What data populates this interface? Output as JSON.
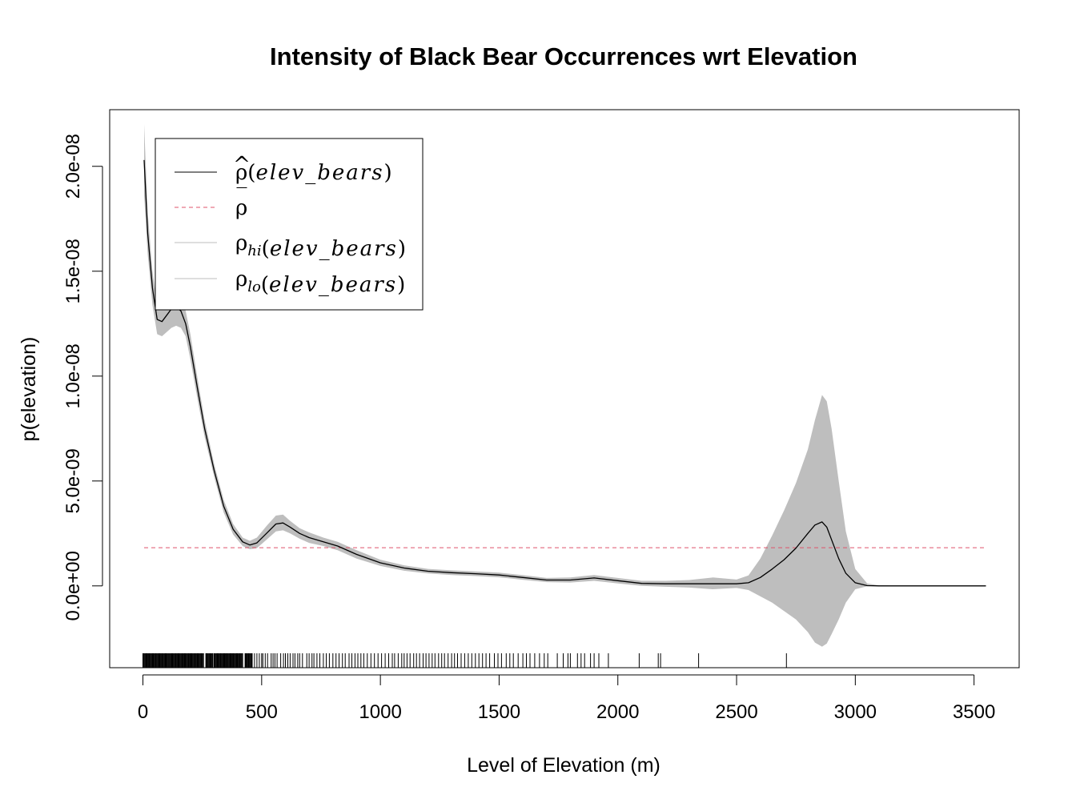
{
  "chart_data": {
    "type": "line",
    "title": "Intensity of Black Bear Occurrences wrt Elevation",
    "xlabel": "Level of Elevation (m)",
    "ylabel": "p(elevation)",
    "xlim": [
      -140,
      3690
    ],
    "ylim": [
      -3.9e-09,
      2.27e-08
    ],
    "x_ticks": [
      0,
      500,
      1000,
      1500,
      2000,
      2500,
      3000,
      3500
    ],
    "x_tick_labels": [
      "0",
      "500",
      "1000",
      "1500",
      "2000",
      "2500",
      "3000",
      "3500"
    ],
    "y_ticks": [
      0,
      5e-09,
      1e-08,
      1.5e-08,
      2e-08
    ],
    "y_tick_labels": [
      "0.0e+00",
      "5.0e-09",
      "1.0e-08",
      "1.5e-08",
      "2.0e-08"
    ],
    "grid": false,
    "legend_position": "top-left",
    "legend": [
      {
        "pre": "ρ",
        "accent": "^",
        "sub": "",
        "arg": "(elev_bears)",
        "color": "#000000",
        "dash": "none"
      },
      {
        "pre": "ρ",
        "accent": "‾",
        "sub": "",
        "arg": "",
        "color": "#DF536B",
        "dash": "5,4"
      },
      {
        "pre": "ρ",
        "accent": "",
        "sub": "hi",
        "arg": "(elev_bears)",
        "color": "#BEBEBE",
        "dash": "none"
      },
      {
        "pre": "ρ",
        "accent": "",
        "sub": "lo",
        "arg": "(elev_bears)",
        "color": "#BEBEBE",
        "dash": "none"
      }
    ],
    "series": [
      {
        "role": "estimate",
        "color": "#000000",
        "x": [
          5,
          20,
          40,
          60,
          80,
          100,
          120,
          140,
          160,
          180,
          200,
          230,
          260,
          300,
          340,
          380,
          420,
          450,
          480,
          520,
          560,
          590,
          620,
          660,
          700,
          760,
          820,
          900,
          1000,
          1100,
          1200,
          1300,
          1400,
          1500,
          1600,
          1700,
          1800,
          1900,
          2000,
          2100,
          2200,
          2300,
          2400,
          2500,
          2550,
          2600,
          2650,
          2700,
          2750,
          2800,
          2830,
          2860,
          2880,
          2900,
          2930,
          2960,
          3000,
          3050,
          3100,
          3200,
          3300,
          3400,
          3500,
          3550
        ],
        "y": [
          2.03e-08,
          1.68e-08,
          1.42e-08,
          1.27e-08,
          1.26e-08,
          1.29e-08,
          1.32e-08,
          1.33e-08,
          1.31e-08,
          1.25e-08,
          1.14e-08,
          9.4e-09,
          7.5e-09,
          5.5e-09,
          3.8e-09,
          2.7e-09,
          2.1e-09,
          1.95e-09,
          2.05e-09,
          2.5e-09,
          2.95e-09,
          3e-09,
          2.8e-09,
          2.5e-09,
          2.3e-09,
          2.1e-09,
          1.9e-09,
          1.5e-09,
          1.1e-09,
          8.5e-10,
          7e-10,
          6.3e-10,
          5.8e-10,
          5.2e-10,
          4e-10,
          2.8e-10,
          2.8e-10,
          3.8e-10,
          2.5e-10,
          1.2e-10,
          1e-10,
          1e-10,
          1e-10,
          1e-10,
          1.5e-10,
          4e-10,
          8e-10,
          1.25e-09,
          1.8e-09,
          2.5e-09,
          2.9e-09,
          3.05e-09,
          2.8e-09,
          2.2e-09,
          1.3e-09,
          6e-10,
          1.5e-10,
          1e-11,
          0,
          0,
          0,
          0,
          0,
          0
        ]
      },
      {
        "role": "upper",
        "color": "#BEBEBE",
        "x": [
          5,
          20,
          40,
          60,
          80,
          100,
          120,
          140,
          160,
          180,
          200,
          230,
          260,
          300,
          340,
          380,
          420,
          450,
          480,
          520,
          560,
          590,
          620,
          660,
          700,
          760,
          820,
          900,
          1000,
          1100,
          1200,
          1300,
          1400,
          1500,
          1600,
          1700,
          1800,
          1900,
          2000,
          2100,
          2200,
          2300,
          2400,
          2500,
          2550,
          2600,
          2650,
          2700,
          2750,
          2800,
          2830,
          2860,
          2880,
          2900,
          2930,
          2960,
          3000,
          3050,
          3100,
          3200,
          3300,
          3400,
          3500,
          3550
        ],
        "y": [
          2.2e-08,
          1.78e-08,
          1.5e-08,
          1.34e-08,
          1.33e-08,
          1.37e-08,
          1.41e-08,
          1.42e-08,
          1.39e-08,
          1.31e-08,
          1.2e-08,
          9.9e-09,
          7.9e-09,
          5.8e-09,
          4.1e-09,
          2.95e-09,
          2.3e-09,
          2.15e-09,
          2.3e-09,
          2.85e-09,
          3.35e-09,
          3.4e-09,
          3.1e-09,
          2.75e-09,
          2.55e-09,
          2.3e-09,
          2.1e-09,
          1.7e-09,
          1.25e-09,
          9.8e-10,
          8.1e-10,
          7.4e-10,
          6.9e-10,
          6.3e-10,
          5.1e-10,
          3.8e-10,
          4e-10,
          5.2e-10,
          3.8e-10,
          2.4e-10,
          2.4e-10,
          2.8e-10,
          4e-10,
          3e-10,
          5e-10,
          1.3e-09,
          2.4e-09,
          3.6e-09,
          4.9e-09,
          6.5e-09,
          7.9e-09,
          9.1e-09,
          8.8e-09,
          7.5e-09,
          5e-09,
          2.6e-09,
          8e-10,
          1.2e-10,
          2e-11,
          0,
          0,
          0,
          0,
          0
        ]
      },
      {
        "role": "lower",
        "color": "#BEBEBE",
        "x": [
          5,
          20,
          40,
          60,
          80,
          100,
          120,
          140,
          160,
          180,
          200,
          230,
          260,
          300,
          340,
          380,
          420,
          450,
          480,
          520,
          560,
          590,
          620,
          660,
          700,
          760,
          820,
          900,
          1000,
          1100,
          1200,
          1300,
          1400,
          1500,
          1600,
          1700,
          1800,
          1900,
          2000,
          2100,
          2200,
          2300,
          2400,
          2500,
          2550,
          2600,
          2650,
          2700,
          2750,
          2800,
          2830,
          2860,
          2880,
          2900,
          2930,
          2960,
          3000,
          3050,
          3100,
          3200,
          3300,
          3400,
          3500,
          3550
        ],
        "y": [
          1.86e-08,
          1.58e-08,
          1.34e-08,
          1.2e-08,
          1.19e-08,
          1.21e-08,
          1.23e-08,
          1.24e-08,
          1.23e-08,
          1.19e-08,
          1.08e-08,
          8.9e-09,
          7.1e-09,
          5.2e-09,
          3.5e-09,
          2.45e-09,
          1.9e-09,
          1.75e-09,
          1.8e-09,
          2.2e-09,
          2.6e-09,
          2.65e-09,
          2.5e-09,
          2.25e-09,
          2.05e-09,
          1.9e-09,
          1.7e-09,
          1.3e-09,
          9.5e-10,
          7.2e-10,
          5.9e-10,
          5.2e-10,
          4.7e-10,
          4.1e-10,
          2.9e-10,
          1.8e-10,
          1.6e-10,
          2.4e-10,
          1.2e-10,
          0,
          -4e-11,
          -8e-11,
          -1.6e-10,
          -1e-10,
          -2e-10,
          -5e-10,
          -8e-10,
          -1.2e-09,
          -1.6e-09,
          -2.2e-09,
          -2.7e-09,
          -2.9e-09,
          -2.75e-09,
          -2.3e-09,
          -1.6e-09,
          -8e-10,
          -1.6e-10,
          -2e-11,
          0,
          0,
          0,
          0,
          0,
          0
        ]
      },
      {
        "role": "mean",
        "color": "#DF536B",
        "x": [
          5,
          3550
        ],
        "y": [
          1.82e-09,
          1.82e-09
        ]
      }
    ],
    "rug": {
      "color": "#000000",
      "dense_ranges": [
        [
          0,
          255
        ],
        [
          265,
          295
        ],
        [
          300,
          420
        ],
        [
          430,
          460
        ]
      ],
      "dense_step": 3,
      "x": [
        470,
        480,
        490,
        500,
        505,
        515,
        525,
        540,
        548,
        556,
        565,
        580,
        592,
        600,
        610,
        620,
        632,
        640,
        652,
        660,
        672,
        690,
        700,
        712,
        720,
        733,
        745,
        760,
        772,
        785,
        800,
        813,
        826,
        840,
        852,
        868,
        880,
        893,
        905,
        918,
        930,
        945,
        960,
        975,
        990,
        1005,
        1020,
        1035,
        1050,
        1060,
        1075,
        1090,
        1100,
        1112,
        1125,
        1140,
        1152,
        1165,
        1180,
        1192,
        1205,
        1218,
        1230,
        1245,
        1258,
        1270,
        1285,
        1300,
        1312,
        1325,
        1340,
        1355,
        1370,
        1385,
        1400,
        1415,
        1430,
        1445,
        1460,
        1480,
        1495,
        1510,
        1530,
        1545,
        1560,
        1580,
        1600,
        1615,
        1630,
        1650,
        1670,
        1690,
        1705,
        1745,
        1770,
        1790,
        1800,
        1830,
        1845,
        1860,
        1885,
        1900,
        1920,
        1960,
        2090,
        2170,
        2180,
        2340,
        2710
      ]
    }
  }
}
